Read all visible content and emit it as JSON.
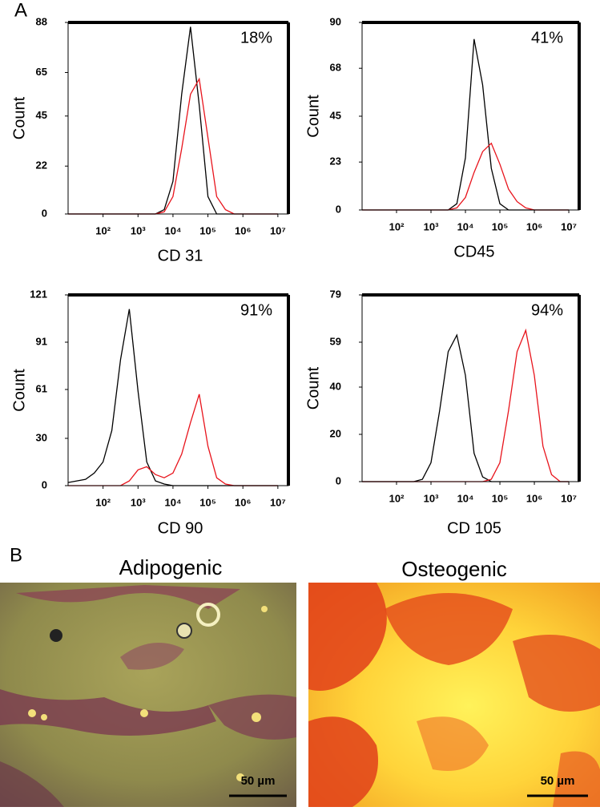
{
  "panel_labels": [
    "A",
    "B"
  ],
  "chart_data": [
    {
      "type": "line",
      "xlabel": "CD 31",
      "ylabel": "Count",
      "annotation": "18%",
      "log_x": true,
      "x": [
        10,
        17.78,
        31.62,
        56.23,
        100,
        177.8,
        316.2,
        562.3,
        1000,
        1778,
        3162,
        5623,
        10000,
        17783,
        31623,
        56234,
        100000,
        177828,
        316228,
        562341,
        1000000,
        1778279,
        3162278,
        5623413,
        10000000
      ],
      "series": [
        {
          "color": "#000000",
          "values": [
            0,
            0,
            0,
            0,
            0,
            0,
            0,
            0,
            0,
            0,
            0,
            2,
            15,
            55,
            86,
            50,
            8,
            0,
            0,
            0,
            0,
            0,
            0,
            0,
            0
          ]
        },
        {
          "color": "#e8141c",
          "values": [
            0,
            0,
            0,
            0,
            0,
            0,
            0,
            0,
            0,
            0,
            0,
            1,
            8,
            30,
            55,
            62,
            35,
            8,
            2,
            0,
            0,
            0,
            0,
            0,
            0
          ]
        }
      ],
      "xlim": [
        10,
        20000000
      ],
      "ylim": [
        0,
        88
      ],
      "xticks": [
        {
          "value": 100,
          "label": "10²"
        },
        {
          "value": 1000,
          "label": "10³"
        },
        {
          "value": 10000,
          "label": "10⁴"
        },
        {
          "value": 100000,
          "label": "10⁵"
        },
        {
          "value": 1000000,
          "label": "10⁶"
        },
        {
          "value": 10000000,
          "label": "10⁷"
        }
      ],
      "yticks": [
        0,
        22,
        45,
        65,
        88
      ]
    },
    {
      "type": "line",
      "xlabel": "CD45",
      "ylabel": "Count",
      "annotation": "41%",
      "log_x": true,
      "x": [
        10,
        17.78,
        31.62,
        56.23,
        100,
        177.8,
        316.2,
        562.3,
        1000,
        1778,
        3162,
        5623,
        10000,
        17783,
        31623,
        56234,
        100000,
        177828,
        316228,
        562341,
        1000000,
        1778279,
        3162278,
        5623413,
        10000000
      ],
      "series": [
        {
          "color": "#000000",
          "values": [
            0,
            0,
            0,
            0,
            0,
            0,
            0,
            0,
            0,
            0,
            0,
            3,
            25,
            82,
            60,
            20,
            3,
            0,
            0,
            0,
            0,
            0,
            0,
            0,
            0
          ]
        },
        {
          "color": "#e8141c",
          "values": [
            0,
            0,
            0,
            0,
            0,
            0,
            0,
            0,
            0,
            0,
            0,
            1,
            6,
            18,
            28,
            32,
            22,
            10,
            4,
            1,
            0,
            0,
            0,
            0,
            0
          ]
        }
      ],
      "xlim": [
        10,
        20000000
      ],
      "ylim": [
        0,
        90
      ],
      "xticks": [
        {
          "value": 100,
          "label": "10²"
        },
        {
          "value": 1000,
          "label": "10³"
        },
        {
          "value": 10000,
          "label": "10⁴"
        },
        {
          "value": 100000,
          "label": "10⁵"
        },
        {
          "value": 1000000,
          "label": "10⁶"
        },
        {
          "value": 10000000,
          "label": "10⁷"
        }
      ],
      "yticks": [
        0,
        23,
        45,
        68,
        90
      ]
    },
    {
      "type": "line",
      "xlabel": "CD 90",
      "ylabel": "Count",
      "annotation": "91%",
      "log_x": true,
      "x": [
        10,
        17.78,
        31.62,
        56.23,
        100,
        177.8,
        316.2,
        562.3,
        1000,
        1778,
        3162,
        5623,
        10000,
        17783,
        31623,
        56234,
        100000,
        177828,
        316228,
        562341,
        1000000,
        1778279,
        3162278,
        5623413,
        10000000
      ],
      "series": [
        {
          "color": "#000000",
          "values": [
            2,
            3,
            4,
            8,
            15,
            35,
            80,
            112,
            60,
            15,
            3,
            1,
            0,
            0,
            0,
            0,
            0,
            0,
            0,
            0,
            0,
            0,
            0,
            0,
            0
          ]
        },
        {
          "color": "#e8141c",
          "values": [
            0,
            0,
            0,
            0,
            0,
            0,
            0,
            3,
            10,
            12,
            7,
            5,
            8,
            20,
            40,
            58,
            25,
            5,
            1,
            0,
            0,
            0,
            0,
            0,
            0
          ]
        }
      ],
      "xlim": [
        10,
        20000000
      ],
      "ylim": [
        0,
        121
      ],
      "xticks": [
        {
          "value": 100,
          "label": "10²"
        },
        {
          "value": 1000,
          "label": "10³"
        },
        {
          "value": 10000,
          "label": "10⁴"
        },
        {
          "value": 100000,
          "label": "10⁵"
        },
        {
          "value": 1000000,
          "label": "10⁶"
        },
        {
          "value": 10000000,
          "label": "10⁷"
        }
      ],
      "yticks": [
        0,
        30,
        61,
        91,
        121
      ]
    },
    {
      "type": "line",
      "xlabel": "CD 105",
      "ylabel": "Count",
      "annotation": "94%",
      "log_x": true,
      "x": [
        10,
        17.78,
        31.62,
        56.23,
        100,
        177.8,
        316.2,
        562.3,
        1000,
        1778,
        3162,
        5623,
        10000,
        17783,
        31623,
        56234,
        100000,
        177828,
        316228,
        562341,
        1000000,
        1778279,
        3162278,
        5623413,
        10000000
      ],
      "series": [
        {
          "color": "#000000",
          "values": [
            0,
            0,
            0,
            0,
            0,
            0,
            0,
            1,
            8,
            30,
            55,
            62,
            45,
            12,
            2,
            0,
            0,
            0,
            0,
            0,
            0,
            0,
            0,
            0,
            0
          ]
        },
        {
          "color": "#e8141c",
          "values": [
            0,
            0,
            0,
            0,
            0,
            0,
            0,
            0,
            0,
            0,
            0,
            0,
            0,
            0,
            0,
            1,
            8,
            30,
            55,
            64,
            45,
            15,
            3,
            0,
            0
          ]
        }
      ],
      "xlim": [
        10,
        20000000
      ],
      "ylim": [
        0,
        79
      ],
      "xticks": [
        {
          "value": 100,
          "label": "10²"
        },
        {
          "value": 1000,
          "label": "10³"
        },
        {
          "value": 10000,
          "label": "10⁴"
        },
        {
          "value": 100000,
          "label": "10⁵"
        },
        {
          "value": 1000000,
          "label": "10⁶"
        },
        {
          "value": 10000000,
          "label": "10⁷"
        }
      ],
      "yticks": [
        0,
        20,
        40,
        59,
        79
      ]
    }
  ],
  "micrographs": [
    {
      "title": "Adipogenic",
      "scale_bar": "50 µm"
    },
    {
      "title": "Osteogenic",
      "scale_bar": "50 µm"
    }
  ]
}
